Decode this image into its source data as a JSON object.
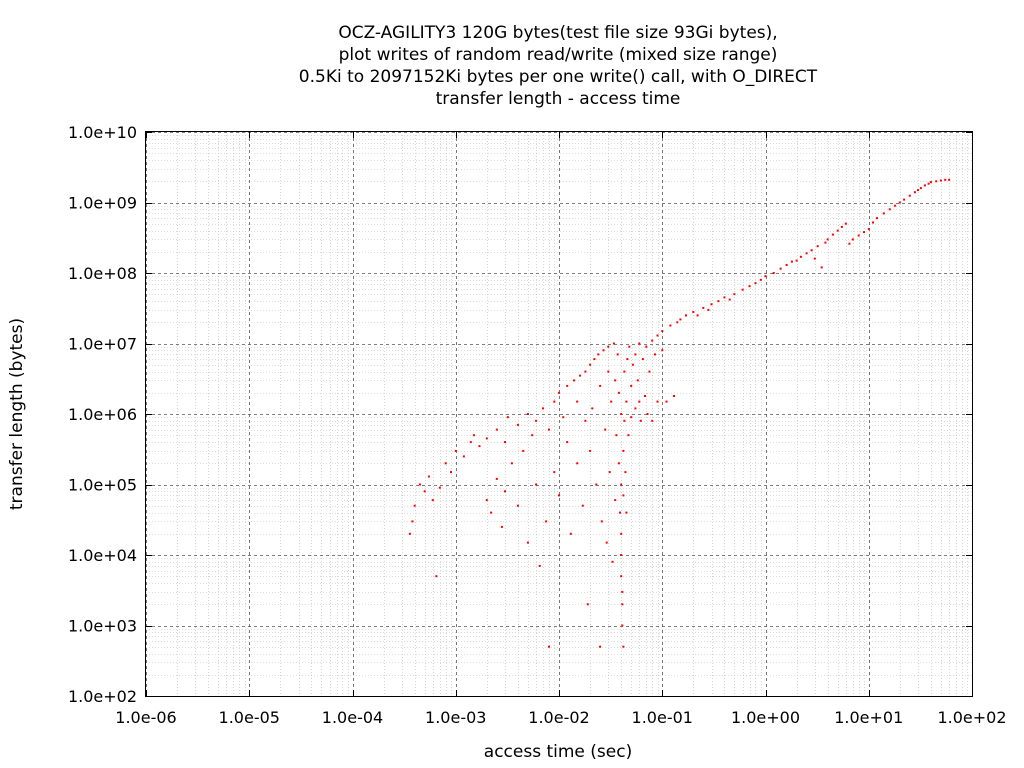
{
  "chart_data": {
    "type": "scatter",
    "title_lines": [
      "OCZ-AGILITY3 120G bytes(test file size 93Gi bytes),",
      "plot writes of random read/write (mixed size range)",
      "0.5Ki to 2097152Ki bytes per one write() call, with O_DIRECT",
      "transfer length - access time"
    ],
    "xlabel": "access time (sec)",
    "ylabel": "transfer length (bytes)",
    "xscale": "log",
    "yscale": "log",
    "xlim": [
      1e-06,
      100
    ],
    "ylim": [
      100,
      10000000000.0
    ],
    "x_ticks": [
      {
        "value": 1e-06,
        "label": "1.0e-06"
      },
      {
        "value": 1e-05,
        "label": "1.0e-05"
      },
      {
        "value": 0.0001,
        "label": "1.0e-04"
      },
      {
        "value": 0.001,
        "label": "1.0e-03"
      },
      {
        "value": 0.01,
        "label": "1.0e-02"
      },
      {
        "value": 0.1,
        "label": "1.0e-01"
      },
      {
        "value": 1,
        "label": "1.0e+00"
      },
      {
        "value": 10,
        "label": "1.0e+01"
      },
      {
        "value": 100,
        "label": "1.0e+02"
      }
    ],
    "y_ticks": [
      {
        "value": 100,
        "label": "1.0e+02"
      },
      {
        "value": 1000,
        "label": "1.0e+03"
      },
      {
        "value": 10000,
        "label": "1.0e+04"
      },
      {
        "value": 100000,
        "label": "1.0e+05"
      },
      {
        "value": 1000000,
        "label": "1.0e+06"
      },
      {
        "value": 10000000,
        "label": "1.0e+07"
      },
      {
        "value": 100000000,
        "label": "1.0e+08"
      },
      {
        "value": 1000000000,
        "label": "1.0e+09"
      },
      {
        "value": 10000000000,
        "label": "1.0e+10"
      }
    ],
    "grid": true,
    "minor_grid": true,
    "legend": "none",
    "series": [
      {
        "color": "#ff0000",
        "points": [
          [
            0.00036,
            20000
          ],
          [
            0.00038,
            30000
          ],
          [
            0.0004,
            50000
          ],
          [
            0.00045,
            100000
          ],
          [
            0.0005,
            80000
          ],
          [
            0.00055,
            130000
          ],
          [
            0.0006,
            60000
          ],
          [
            0.00065,
            5000
          ],
          [
            0.0007,
            90000
          ],
          [
            0.0008,
            200000
          ],
          [
            0.0009,
            150000
          ],
          [
            0.001,
            300000
          ],
          [
            0.0012,
            250000
          ],
          [
            0.0014,
            400000
          ],
          [
            0.0015,
            500000
          ],
          [
            0.0017,
            350000
          ],
          [
            0.002,
            60000
          ],
          [
            0.002,
            450000
          ],
          [
            0.0022,
            40000
          ],
          [
            0.0025,
            120000
          ],
          [
            0.0025,
            600000
          ],
          [
            0.0028,
            25000
          ],
          [
            0.003,
            80000
          ],
          [
            0.003,
            400000
          ],
          [
            0.0032,
            900000
          ],
          [
            0.0035,
            200000
          ],
          [
            0.004,
            50000
          ],
          [
            0.004,
            700000
          ],
          [
            0.0045,
            300000
          ],
          [
            0.005,
            15000
          ],
          [
            0.005,
            1000000
          ],
          [
            0.0055,
            500000
          ],
          [
            0.006,
            100000
          ],
          [
            0.006,
            800000
          ],
          [
            0.0065,
            7000
          ],
          [
            0.007,
            1200000
          ],
          [
            0.0075,
            30000
          ],
          [
            0.008,
            600000
          ],
          [
            0.008,
            500
          ],
          [
            0.009,
            1500000
          ],
          [
            0.009,
            150000
          ],
          [
            0.01,
            2000000
          ],
          [
            0.01,
            70000
          ],
          [
            0.011,
            900000
          ],
          [
            0.012,
            2500000
          ],
          [
            0.012,
            400000
          ],
          [
            0.013,
            20000
          ],
          [
            0.014,
            3000000
          ],
          [
            0.015,
            1500000
          ],
          [
            0.015,
            200000
          ],
          [
            0.016,
            3500000
          ],
          [
            0.017,
            50000
          ],
          [
            0.018,
            4000000
          ],
          [
            0.018,
            800000
          ],
          [
            0.019,
            2000
          ],
          [
            0.02,
            5000000
          ],
          [
            0.02,
            300000
          ],
          [
            0.021,
            1200000
          ],
          [
            0.022,
            6000000
          ],
          [
            0.023,
            100000
          ],
          [
            0.024,
            7000000
          ],
          [
            0.025,
            2500000
          ],
          [
            0.025,
            500
          ],
          [
            0.026,
            30000
          ],
          [
            0.027,
            8000000
          ],
          [
            0.028,
            600000
          ],
          [
            0.029,
            15000
          ],
          [
            0.03,
            9000000
          ],
          [
            0.03,
            4000000
          ],
          [
            0.031,
            150000
          ],
          [
            0.032,
            1500000
          ],
          [
            0.033,
            8000
          ],
          [
            0.034,
            10000000
          ],
          [
            0.035,
            3000000
          ],
          [
            0.035,
            60000
          ],
          [
            0.036,
            500000
          ],
          [
            0.037,
            7000000
          ],
          [
            0.038,
            2000000
          ],
          [
            0.038,
            200000
          ],
          [
            0.039,
            40000
          ],
          [
            0.04,
            1000000
          ],
          [
            0.04,
            100000
          ],
          [
            0.04,
            20000
          ],
          [
            0.04,
            10000
          ],
          [
            0.04,
            5000
          ],
          [
            0.041,
            3000
          ],
          [
            0.041,
            2000
          ],
          [
            0.041,
            1000
          ],
          [
            0.042,
            500
          ],
          [
            0.042,
            300000
          ],
          [
            0.042,
            70000
          ],
          [
            0.043,
            4000000
          ],
          [
            0.043,
            800000
          ],
          [
            0.044,
            150000
          ],
          [
            0.045,
            1500000
          ],
          [
            0.045,
            40000
          ],
          [
            0.046,
            6000000
          ],
          [
            0.047,
            500000
          ],
          [
            0.048,
            9000000
          ],
          [
            0.05,
            2500000
          ],
          [
            0.05,
            900000
          ],
          [
            0.052,
            5000000
          ],
          [
            0.055,
            1200000
          ],
          [
            0.055,
            7000000
          ],
          [
            0.058,
            3000000
          ],
          [
            0.06,
            10000000
          ],
          [
            0.06,
            1500000
          ],
          [
            0.062,
            800000
          ],
          [
            0.065,
            6000000
          ],
          [
            0.068,
            1800000
          ],
          [
            0.07,
            9000000
          ],
          [
            0.072,
            1000000
          ],
          [
            0.075,
            4000000
          ],
          [
            0.08,
            11000000
          ],
          [
            0.08,
            800000
          ],
          [
            0.085,
            7000000
          ],
          [
            0.09,
            13000000
          ],
          [
            0.09,
            1500000
          ],
          [
            0.1,
            15000000
          ],
          [
            0.1,
            8000000
          ],
          [
            0.11,
            1500000
          ],
          [
            0.12,
            18000000
          ],
          [
            0.13,
            1800000
          ],
          [
            0.14,
            20000000
          ],
          [
            0.15,
            22000000
          ],
          [
            0.17,
            25000000
          ],
          [
            0.2,
            28000000
          ],
          [
            0.22,
            25000000
          ],
          [
            0.25,
            32000000
          ],
          [
            0.28,
            30000000
          ],
          [
            0.3,
            36000000
          ],
          [
            0.35,
            40000000
          ],
          [
            0.4,
            45000000
          ],
          [
            0.45,
            42000000
          ],
          [
            0.5,
            50000000
          ],
          [
            0.6,
            58000000
          ],
          [
            0.7,
            65000000
          ],
          [
            0.8,
            72000000
          ],
          [
            0.9,
            80000000
          ],
          [
            1.0,
            90000000
          ],
          [
            1.2,
            100000000
          ],
          [
            1.4,
            115000000
          ],
          [
            1.6,
            130000000
          ],
          [
            1.8,
            145000000
          ],
          [
            2.0,
            150000000
          ],
          [
            2.2,
            170000000
          ],
          [
            2.5,
            190000000
          ],
          [
            2.8,
            210000000
          ],
          [
            3.0,
            160000000
          ],
          [
            3.2,
            240000000
          ],
          [
            3.5,
            120000000
          ],
          [
            3.8,
            270000000
          ],
          [
            4.0,
            300000000
          ],
          [
            4.5,
            350000000
          ],
          [
            5.0,
            400000000
          ],
          [
            5.5,
            450000000
          ],
          [
            6.0,
            500000000
          ],
          [
            6.5,
            260000000
          ],
          [
            7.0,
            300000000
          ],
          [
            8.0,
            340000000
          ],
          [
            9.0,
            380000000
          ],
          [
            10.0,
            420000000
          ],
          [
            11.0,
            520000000
          ],
          [
            12.0,
            600000000
          ],
          [
            14.0,
            700000000
          ],
          [
            16.0,
            800000000
          ],
          [
            18.0,
            900000000
          ],
          [
            20.0,
            1000000000
          ],
          [
            22.0,
            1100000000
          ],
          [
            25.0,
            1250000000
          ],
          [
            28.0,
            1400000000
          ],
          [
            30.0,
            1500000000
          ],
          [
            32.0,
            1600000000
          ],
          [
            35.0,
            1750000000
          ],
          [
            38.0,
            1850000000
          ],
          [
            40.0,
            1950000000
          ],
          [
            45.0,
            2000000000
          ],
          [
            50.0,
            2050000000
          ],
          [
            55.0,
            2100000000
          ],
          [
            60.0,
            2100000000
          ]
        ]
      }
    ]
  }
}
